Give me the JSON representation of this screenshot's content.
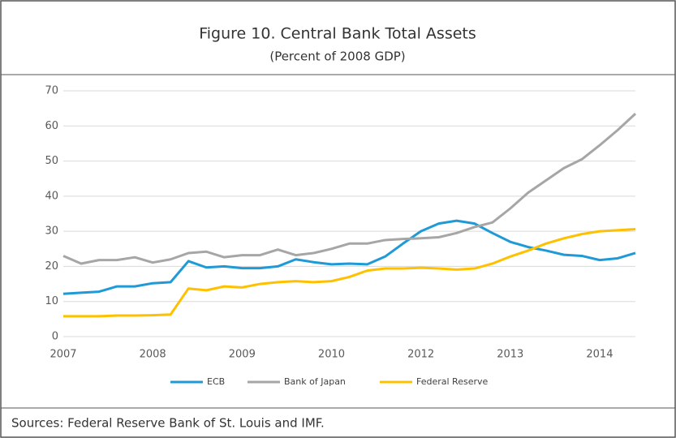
{
  "chart_data": {
    "type": "line",
    "title": "Figure 10. Central Bank Total Assets",
    "subtitle": "(Percent of 2008 GDP)",
    "source": "Sources: Federal Reserve Bank of St. Louis and IMF.",
    "categories": [
      "2007",
      null,
      null,
      null,
      null,
      "2008",
      null,
      null,
      null,
      null,
      "2009",
      null,
      null,
      null,
      null,
      "2010",
      null,
      null,
      null,
      null,
      "2012",
      null,
      null,
      null,
      null,
      "2013",
      null,
      null,
      null,
      null,
      "2014",
      null,
      null
    ],
    "series": [
      {
        "name": "ECB",
        "color": "#1f9ad6",
        "values": [
          12.2,
          12.5,
          12.8,
          14.3,
          14.3,
          15.2,
          15.5,
          21.5,
          19.7,
          20,
          19.5,
          19.5,
          20,
          22,
          21.2,
          20.6,
          20.8,
          20.6,
          22.8,
          26.5,
          30,
          32.2,
          33,
          32.2,
          29.5,
          27,
          25.5,
          24.5,
          23.3,
          23,
          21.8,
          22.3,
          23.8
        ]
      },
      {
        "name": "Bank of Japan",
        "color": "#a6a6a6",
        "values": [
          23,
          20.8,
          21.8,
          21.8,
          22.6,
          21.1,
          22,
          23.8,
          24.2,
          22.6,
          23.2,
          23.2,
          24.8,
          23.2,
          23.8,
          25,
          26.5,
          26.5,
          27.5,
          27.8,
          28,
          28.3,
          29.5,
          31.2,
          32.5,
          36.5,
          41,
          44.5,
          48,
          50.5,
          54.5,
          58.8,
          63.5
        ]
      },
      {
        "name": "Federal Reserve",
        "color": "#ffc000",
        "values": [
          5.8,
          5.8,
          5.8,
          6,
          6,
          6.1,
          6.3,
          13.7,
          13.2,
          14.3,
          14,
          15,
          15.5,
          15.8,
          15.5,
          15.8,
          17,
          18.8,
          19.4,
          19.4,
          19.6,
          19.4,
          19.1,
          19.4,
          20.8,
          22.8,
          24.5,
          26.5,
          28,
          29.2,
          30,
          30.3,
          30.6
        ]
      }
    ],
    "ylim": [
      0,
      70
    ],
    "yticks": [
      0,
      10,
      20,
      30,
      40,
      50,
      60,
      70
    ],
    "grid": true
  }
}
